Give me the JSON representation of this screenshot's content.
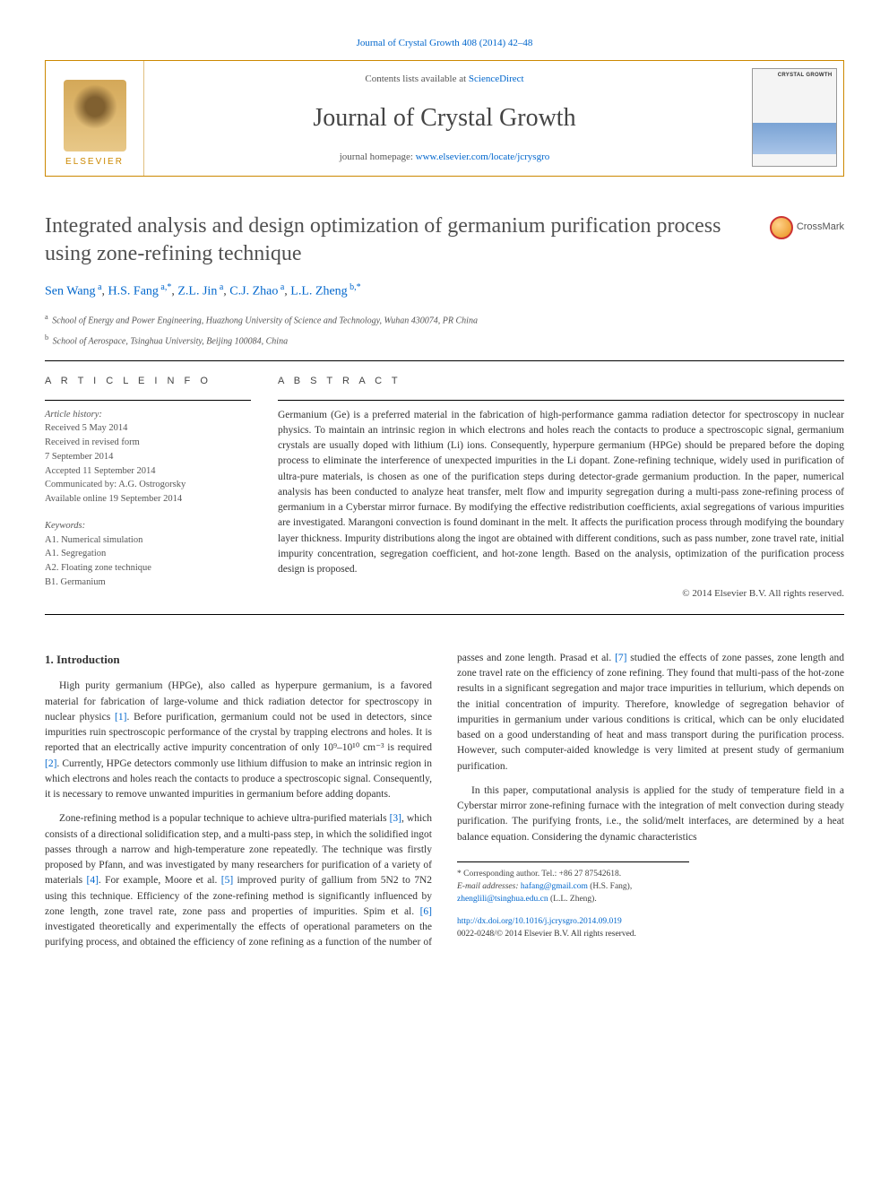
{
  "top_citation_link": "Journal of Crystal Growth 408 (2014) 42–48",
  "masthead": {
    "publisher": "ELSEVIER",
    "contents_prefix": "Contents lists available at ",
    "contents_link": "ScienceDirect",
    "journal_name": "Journal of Crystal Growth",
    "homepage_prefix": "journal homepage: ",
    "homepage_link": "www.elsevier.com/locate/jcrysgro",
    "cover_label": "CRYSTAL GROWTH"
  },
  "article": {
    "title": "Integrated analysis and design optimization of germanium purification process using zone-refining technique",
    "crossmark": "CrossMark",
    "authors_html": "Sen Wang <sup>a</sup>, H.S. Fang <sup>a,*</sup>, Z.L. Jin <sup>a</sup>, C.J. Zhao <sup>a</sup>, L.L. Zheng <sup>b,*</sup>",
    "affiliations": [
      {
        "sup": "a",
        "text": "School of Energy and Power Engineering, Huazhong University of Science and Technology, Wuhan 430074, PR China"
      },
      {
        "sup": "b",
        "text": "School of Aerospace, Tsinghua University, Beijing 100084, China"
      }
    ]
  },
  "info": {
    "head": "A R T I C L E   I N F O",
    "history_label": "Article history:",
    "received": "Received 5 May 2014",
    "revised1": "Received in revised form",
    "revised2": "7 September 2014",
    "accepted": "Accepted 11 September 2014",
    "communicated": "Communicated by: A.G. Ostrogorsky",
    "online": "Available online 19 September 2014",
    "keywords_label": "Keywords:",
    "keywords": [
      "A1. Numerical simulation",
      "A1. Segregation",
      "A2. Floating zone technique",
      "B1. Germanium"
    ]
  },
  "abstract": {
    "head": "A B S T R A C T",
    "text": "Germanium (Ge) is a preferred material in the fabrication of high-performance gamma radiation detector for spectroscopy in nuclear physics. To maintain an intrinsic region in which electrons and holes reach the contacts to produce a spectroscopic signal, germanium crystals are usually doped with lithium (Li) ions. Consequently, hyperpure germanium (HPGe) should be prepared before the doping process to eliminate the interference of unexpected impurities in the Li dopant. Zone-refining technique, widely used in purification of ultra-pure materials, is chosen as one of the purification steps during detector-grade germanium production. In the paper, numerical analysis has been conducted to analyze heat transfer, melt flow and impurity segregation during a multi-pass zone-refining process of germanium in a Cyberstar mirror furnace. By modifying the effective redistribution coefficients, axial segregations of various impurities are investigated. Marangoni convection is found dominant in the melt. It affects the purification process through modifying the boundary layer thickness. Impurity distributions along the ingot are obtained with different conditions, such as pass number, zone travel rate, initial impurity concentration, segregation coefficient, and hot-zone length. Based on the analysis, optimization of the purification process design is proposed.",
    "copyright": "© 2014 Elsevier B.V. All rights reserved."
  },
  "body": {
    "section_heading": "1.  Introduction",
    "p1a": "High purity germanium (HPGe), also called as hyperpure germanium, is a favored material for fabrication of large-volume and thick radiation detector for spectroscopy in nuclear physics ",
    "ref1": "[1]",
    "p1b": ". Before purification, germanium could not be used in detectors, since impurities ruin spectroscopic performance of the crystal by trapping electrons and holes. It is reported that an electrically active impurity concentration of only 10⁹–10¹⁰ cm⁻³ is required ",
    "ref2": "[2]",
    "p1c": ". Currently, HPGe detectors commonly use lithium diffusion to make an intrinsic region in which electrons and holes reach the contacts to produce a spectroscopic signal. Consequently, it is necessary to remove unwanted impurities in germanium before adding dopants.",
    "p2a": "Zone-refining method is a popular technique to achieve ultra-purified materials ",
    "ref3": "[3]",
    "p2b": ", which consists of a directional solidification step, and a multi-pass step, in which the solidified ingot passes through a narrow and high-temperature zone repeatedly. The technique was firstly proposed by Pfann, and was investigated",
    "p3a": "by many researchers for purification of a variety of materials ",
    "ref4": "[4]",
    "p3b": ". For example, Moore et al. ",
    "ref5": "[5]",
    "p3c": " improved purity of gallium from 5N2 to 7N2 using this technique. Efficiency of the zone-refining method is significantly influenced by zone length, zone travel rate, zone pass and properties of impurities. Spim et al. ",
    "ref6": "[6]",
    "p3d": " investigated theoretically and experimentally the effects of operational parameters on the purifying process, and obtained the efficiency of zone refining as a function of the number of passes and zone length. Prasad et al. ",
    "ref7": "[7]",
    "p3e": " studied the effects of zone passes, zone length and zone travel rate on the efficiency of zone refining. They found that multi-pass of the hot-zone results in a significant segregation and major trace impurities in tellurium, which depends on the initial concentration of impurity. Therefore, knowledge of segregation behavior of impurities in germanium under various conditions is critical, which can be only elucidated based on a good understanding of heat and mass transport during the purification process. However, such computer-aided knowledge is very limited at present study of germanium purification.",
    "p4": "In this paper, computational analysis is applied for the study of temperature field in a Cyberstar mirror zone-refining furnace with the integration of melt convection during steady purification. The purifying fronts, i.e., the solid/melt interfaces, are determined by a heat balance equation. Considering the dynamic characteristics"
  },
  "footnote": {
    "corr": "* Corresponding author. Tel.: +86 27 87542618.",
    "email_label": "E-mail addresses: ",
    "email1": "hafang@gmail.com",
    "email1_who": " (H.S. Fang),",
    "email2": "zhenglili@tsinghua.edu.cn",
    "email2_who": " (L.L. Zheng)."
  },
  "doi": {
    "link": "http://dx.doi.org/10.1016/j.jcrysgro.2014.09.019",
    "issn": "0022-0248/© 2014 Elsevier B.V. All rights reserved."
  },
  "colors": {
    "link": "#0066cc",
    "rule": "#000000",
    "border": "#cc8800"
  }
}
